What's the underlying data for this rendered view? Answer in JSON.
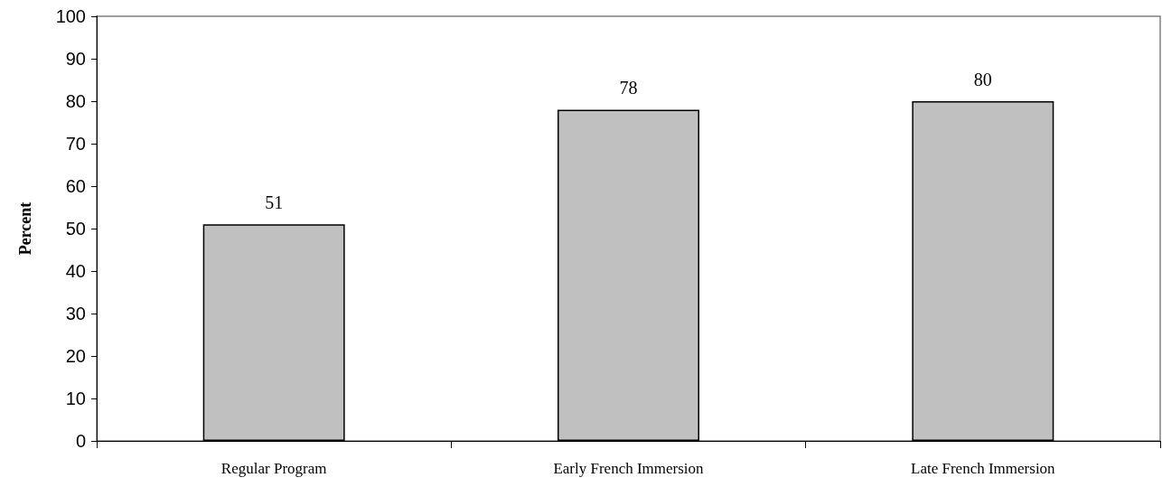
{
  "chart_data": {
    "type": "bar",
    "ylabel": "Percent",
    "categories": [
      "Regular Program",
      "Early French Immersion",
      "Late French Immersion"
    ],
    "values": [
      51,
      78,
      80
    ],
    "color": "#c0c0c0",
    "ylim": [
      0,
      100
    ],
    "yticks": [
      0,
      10,
      20,
      30,
      40,
      50,
      60,
      70,
      80,
      90,
      100
    ],
    "data_labels": true,
    "grid": false
  }
}
